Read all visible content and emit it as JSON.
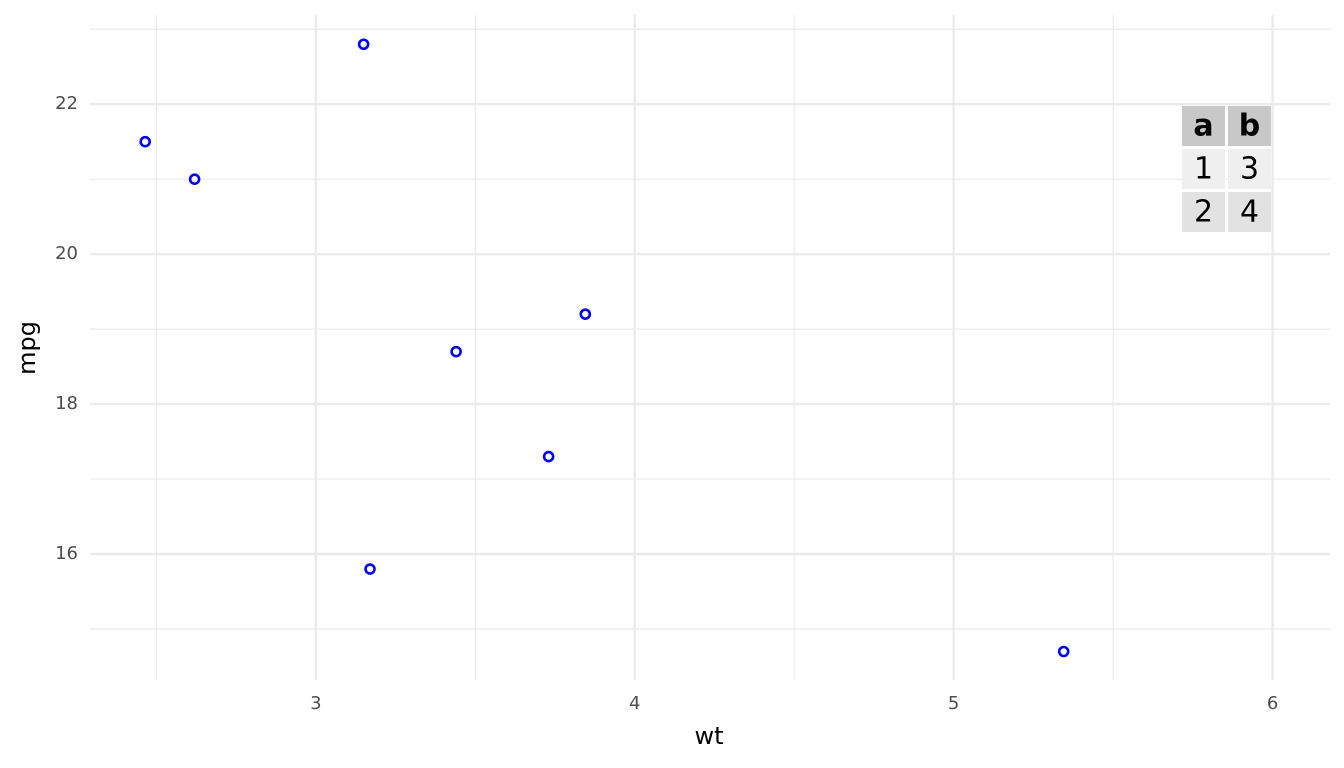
{
  "chart_data": {
    "type": "scatter",
    "x_label": "wt",
    "y_label": "mpg",
    "series": [
      {
        "color": "#0000ff",
        "x": [
          2.465,
          2.62,
          3.15,
          3.17,
          3.44,
          3.73,
          3.845,
          5.345
        ],
        "values": [
          21.5,
          21.0,
          22.8,
          15.8,
          18.7,
          17.3,
          19.2,
          14.7
        ]
      }
    ],
    "xlim": [
      2.292,
      6.18
    ],
    "ylim": [
      14.32,
      23.19
    ],
    "xticks": [
      3,
      4,
      5,
      6
    ],
    "yticks": [
      16,
      18,
      20,
      22
    ],
    "x_minor_grid": [
      2.5,
      3.5,
      4.5,
      5.5
    ],
    "y_minor_grid": [
      15,
      17,
      19,
      21,
      23
    ],
    "grid": true,
    "table": {
      "columns": [
        "a",
        "b"
      ],
      "rows": [
        [
          1,
          3
        ],
        [
          2,
          4
        ]
      ]
    }
  }
}
